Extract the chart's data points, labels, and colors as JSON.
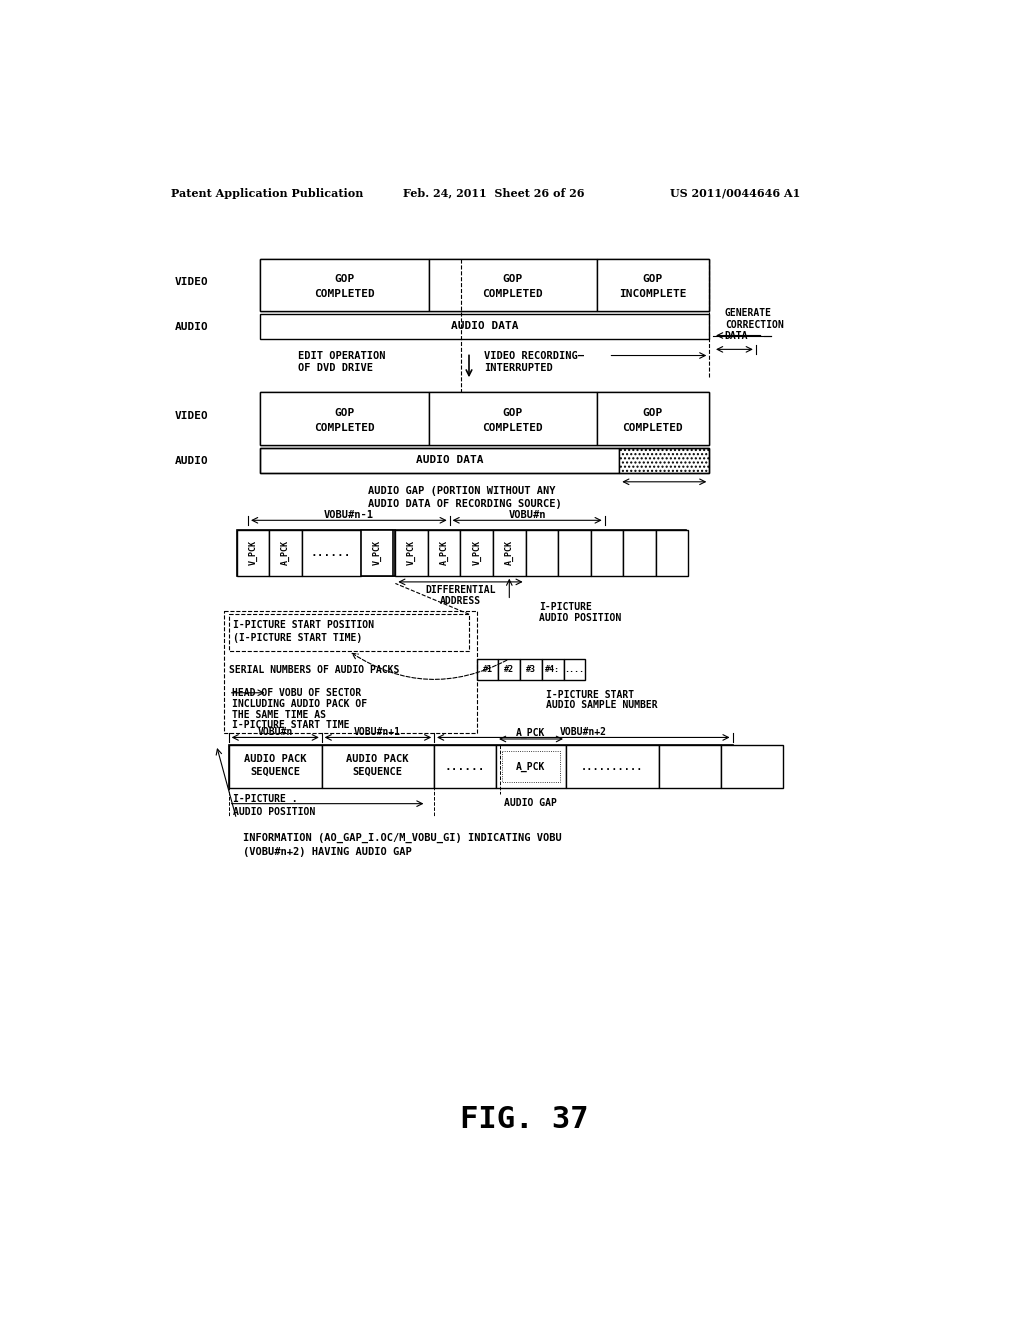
{
  "header_left": "Patent Application Publication",
  "header_mid": "Feb. 24, 2011  Sheet 26 of 26",
  "header_right": "US 2011/0044646 A1",
  "figure_label": "FIG. 37",
  "bg_color": "#ffffff",
  "text_color": "#000000"
}
